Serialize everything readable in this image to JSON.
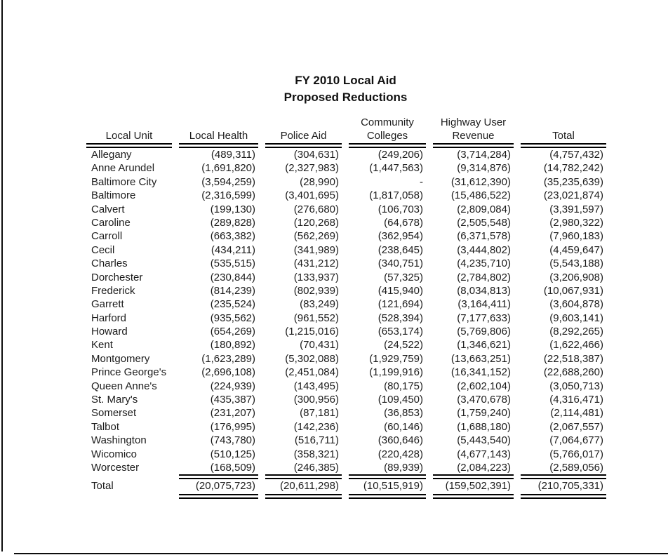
{
  "title": {
    "line1": "FY 2010 Local Aid",
    "line2": "Proposed Reductions"
  },
  "table": {
    "header": {
      "top": [
        "",
        "",
        "",
        "Community",
        "Highway User",
        ""
      ],
      "main": [
        "Local Unit",
        "Local Health",
        "Police Aid",
        "Colleges",
        "Revenue",
        "Total"
      ]
    },
    "rows": [
      {
        "unit": "Allegany",
        "values": [
          "(489,311)",
          "(304,631)",
          "(249,206)",
          "(3,714,284)",
          "(4,757,432)"
        ]
      },
      {
        "unit": "Anne Arundel",
        "values": [
          "(1,691,820)",
          "(2,327,983)",
          "(1,447,563)",
          "(9,314,876)",
          "(14,782,242)"
        ]
      },
      {
        "unit": "Baltimore City",
        "values": [
          "(3,594,259)",
          "(28,990)",
          "-",
          "(31,612,390)",
          "(35,235,639)"
        ]
      },
      {
        "unit": "Baltimore",
        "values": [
          "(2,316,599)",
          "(3,401,695)",
          "(1,817,058)",
          "(15,486,522)",
          "(23,021,874)"
        ]
      },
      {
        "unit": "Calvert",
        "values": [
          "(199,130)",
          "(276,680)",
          "(106,703)",
          "(2,809,084)",
          "(3,391,597)"
        ]
      },
      {
        "unit": "Caroline",
        "values": [
          "(289,828)",
          "(120,268)",
          "(64,678)",
          "(2,505,548)",
          "(2,980,322)"
        ]
      },
      {
        "unit": "Carroll",
        "values": [
          "(663,382)",
          "(562,269)",
          "(362,954)",
          "(6,371,578)",
          "(7,960,183)"
        ]
      },
      {
        "unit": "Cecil",
        "values": [
          "(434,211)",
          "(341,989)",
          "(238,645)",
          "(3,444,802)",
          "(4,459,647)"
        ]
      },
      {
        "unit": "Charles",
        "values": [
          "(535,515)",
          "(431,212)",
          "(340,751)",
          "(4,235,710)",
          "(5,543,188)"
        ]
      },
      {
        "unit": "Dorchester",
        "values": [
          "(230,844)",
          "(133,937)",
          "(57,325)",
          "(2,784,802)",
          "(3,206,908)"
        ]
      },
      {
        "unit": "Frederick",
        "values": [
          "(814,239)",
          "(802,939)",
          "(415,940)",
          "(8,034,813)",
          "(10,067,931)"
        ]
      },
      {
        "unit": "Garrett",
        "values": [
          "(235,524)",
          "(83,249)",
          "(121,694)",
          "(3,164,411)",
          "(3,604,878)"
        ]
      },
      {
        "unit": "Harford",
        "values": [
          "(935,562)",
          "(961,552)",
          "(528,394)",
          "(7,177,633)",
          "(9,603,141)"
        ]
      },
      {
        "unit": "Howard",
        "values": [
          "(654,269)",
          "(1,215,016)",
          "(653,174)",
          "(5,769,806)",
          "(8,292,265)"
        ]
      },
      {
        "unit": "Kent",
        "values": [
          "(180,892)",
          "(70,431)",
          "(24,522)",
          "(1,346,621)",
          "(1,622,466)"
        ]
      },
      {
        "unit": "Montgomery",
        "values": [
          "(1,623,289)",
          "(5,302,088)",
          "(1,929,759)",
          "(13,663,251)",
          "(22,518,387)"
        ]
      },
      {
        "unit": "Prince George's",
        "values": [
          "(2,696,108)",
          "(2,451,084)",
          "(1,199,916)",
          "(16,341,152)",
          "(22,688,260)"
        ]
      },
      {
        "unit": "Queen Anne's",
        "values": [
          "(224,939)",
          "(143,495)",
          "(80,175)",
          "(2,602,104)",
          "(3,050,713)"
        ]
      },
      {
        "unit": "St. Mary's",
        "values": [
          "(435,387)",
          "(300,956)",
          "(109,450)",
          "(3,470,678)",
          "(4,316,471)"
        ]
      },
      {
        "unit": "Somerset",
        "values": [
          "(231,207)",
          "(87,181)",
          "(36,853)",
          "(1,759,240)",
          "(2,114,481)"
        ]
      },
      {
        "unit": "Talbot",
        "values": [
          "(176,995)",
          "(142,236)",
          "(60,146)",
          "(1,688,180)",
          "(2,067,557)"
        ]
      },
      {
        "unit": "Washington",
        "values": [
          "(743,780)",
          "(516,711)",
          "(360,646)",
          "(5,443,540)",
          "(7,064,677)"
        ]
      },
      {
        "unit": "Wicomico",
        "values": [
          "(510,125)",
          "(358,321)",
          "(220,428)",
          "(4,677,143)",
          "(5,766,017)"
        ]
      },
      {
        "unit": "Worcester",
        "values": [
          "(168,509)",
          "(246,385)",
          "(89,939)",
          "(2,084,223)",
          "(2,589,056)"
        ]
      }
    ],
    "total_row": {
      "unit": "Total",
      "values": [
        "(20,075,723)",
        "(20,611,298)",
        "(10,515,919)",
        "(159,502,391)",
        "(210,705,331)"
      ]
    }
  }
}
